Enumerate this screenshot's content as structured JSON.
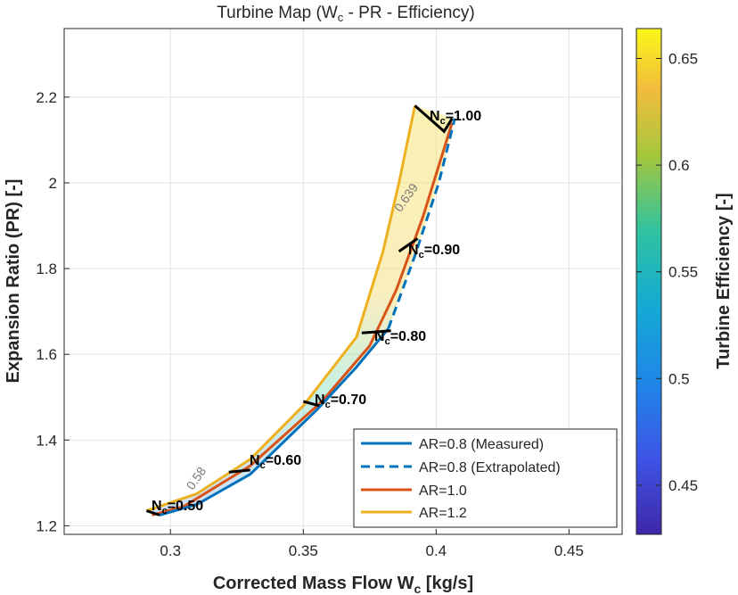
{
  "chart_data": {
    "type": "line",
    "title": "Turbine Map (W_c - PR - Efficiency)",
    "xlabel": "Corrected Mass Flow W_c [kg/s]",
    "ylabel": "Expansion Ratio (PR) [-]",
    "colorbar_label": "Turbine Efficiency [-]",
    "xlim": [
      0.26,
      0.47
    ],
    "ylim": [
      1.18,
      2.36
    ],
    "clim": [
      0.427,
      0.664
    ],
    "x_ticks": [
      "0.3",
      "0.35",
      "0.4",
      "0.45"
    ],
    "y_ticks": [
      "1.2",
      "1.4",
      "1.6",
      "1.8",
      "2",
      "2.2"
    ],
    "colorbar_ticks": [
      "0.45",
      "0.5",
      "0.55",
      "0.6",
      "0.65"
    ],
    "grid": true,
    "legend_position": "bottom-right",
    "series": [
      {
        "name": "AR=0.8 (Measured)",
        "color": "#0072BD",
        "dashed": false,
        "x": [
          0.296,
          0.31,
          0.33,
          0.355,
          0.37,
          0.382
        ],
        "y": [
          1.225,
          1.25,
          1.32,
          1.47,
          1.57,
          1.66
        ]
      },
      {
        "name": "AR=0.8 (Extrapolated)",
        "color": "#0072BD",
        "dashed": true,
        "x": [
          0.382,
          0.392,
          0.401,
          0.407
        ],
        "y": [
          1.66,
          1.83,
          2.0,
          2.15
        ]
      },
      {
        "name": "AR=1.0",
        "color": "#D95319",
        "dashed": false,
        "x": [
          0.293,
          0.305,
          0.33,
          0.357,
          0.375,
          0.385,
          0.395,
          0.406
        ],
        "y": [
          1.225,
          1.245,
          1.34,
          1.49,
          1.62,
          1.75,
          1.92,
          2.14
        ]
      },
      {
        "name": "AR=1.2",
        "color": "#EDB120",
        "dashed": false,
        "x": [
          0.291,
          0.31,
          0.33,
          0.35,
          0.37,
          0.38,
          0.386,
          0.392
        ],
        "y": [
          1.235,
          1.275,
          1.355,
          1.48,
          1.64,
          1.84,
          2.0,
          2.18
        ]
      }
    ],
    "speed_lines": [
      {
        "label": "N_c=0.50",
        "x": [
          0.291,
          0.296
        ],
        "y": [
          1.235,
          1.225
        ]
      },
      {
        "label": "N_c=0.60",
        "x": [
          0.322,
          0.33
        ],
        "y": [
          1.325,
          1.33
        ]
      },
      {
        "label": "N_c=0.70",
        "x": [
          0.35,
          0.356
        ],
        "y": [
          1.49,
          1.48
        ]
      },
      {
        "label": "N_c=0.80",
        "x": [
          0.372,
          0.383
        ],
        "y": [
          1.65,
          1.655
        ]
      },
      {
        "label": "N_c=0.90",
        "x": [
          0.386,
          0.393
        ],
        "y": [
          1.84,
          1.87
        ]
      },
      {
        "label": "N_c=1.00",
        "x": [
          0.392,
          0.403,
          0.406
        ],
        "y": [
          2.18,
          2.12,
          2.15
        ]
      }
    ],
    "efficiency_contours": [
      {
        "label": "0.639",
        "x": 0.39,
        "y": 1.96
      },
      {
        "label": "0.58",
        "x": 0.311,
        "y": 1.305
      }
    ]
  },
  "nc_labels": {
    "n050": {
      "pre": "N",
      "sub": "c",
      "post": "=0.50"
    },
    "n060": {
      "pre": "N",
      "sub": "c",
      "post": "=0.60"
    },
    "n070": {
      "pre": "N",
      "sub": "c",
      "post": "=0.70"
    },
    "n080": {
      "pre": "N",
      "sub": "c",
      "post": "=0.80"
    },
    "n090": {
      "pre": "N",
      "sub": "c",
      "post": "=0.90"
    },
    "n100": {
      "pre": "N",
      "sub": "c",
      "post": "=1.00"
    }
  },
  "title_parts": {
    "pre": "Turbine Map (W",
    "sub": "c",
    "post": " - PR - Efficiency)"
  },
  "xlabel_parts": {
    "pre": "Corrected Mass Flow W",
    "sub": "c",
    "post": " [kg/s]"
  },
  "colors": {
    "ar08": "#0072BD",
    "ar10": "#D95319",
    "ar12": "#EDB120"
  }
}
